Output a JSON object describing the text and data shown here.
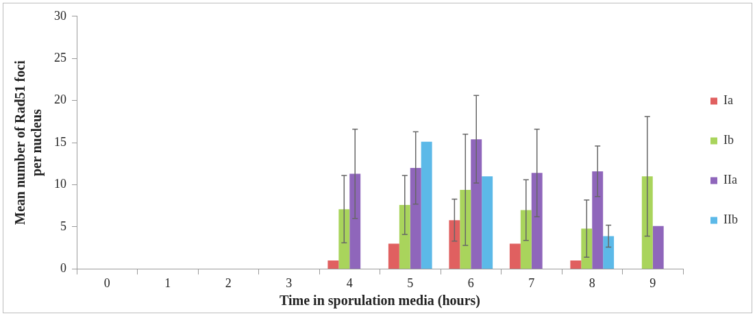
{
  "chart_data": {
    "type": "bar",
    "xlabel": "Time in sporulation media (hours)",
    "ylabel": "Mean number of Rad51 foci per nucleus",
    "categories": [
      "0",
      "1",
      "2",
      "3",
      "4",
      "5",
      "6",
      "7",
      "8",
      "9"
    ],
    "series": [
      {
        "name": "Ia",
        "color": "#e06060",
        "values": [
          0,
          0,
          0,
          0,
          1,
          3,
          5.8,
          3,
          1,
          0
        ],
        "errors": [
          null,
          null,
          null,
          null,
          null,
          null,
          2.5,
          null,
          null,
          null
        ]
      },
      {
        "name": "Ib",
        "color": "#a9d45c",
        "values": [
          0,
          0,
          0,
          0,
          7.1,
          7.6,
          9.4,
          7,
          4.8,
          11
        ],
        "errors": [
          null,
          null,
          null,
          null,
          4,
          3.5,
          6.6,
          3.6,
          3.4,
          7.1
        ]
      },
      {
        "name": "IIa",
        "color": "#8f66bb",
        "values": [
          0,
          0,
          0,
          0,
          11.3,
          12,
          15.4,
          11.4,
          11.6,
          5.1
        ],
        "errors": [
          null,
          null,
          null,
          null,
          5.3,
          4.3,
          5.2,
          5.2,
          3,
          null
        ]
      },
      {
        "name": "IIb",
        "color": "#5cb9e8",
        "values": [
          0,
          0,
          0,
          0,
          0,
          15.1,
          11,
          0,
          3.9,
          0
        ],
        "errors": [
          null,
          null,
          null,
          null,
          null,
          null,
          null,
          null,
          1.3,
          null
        ]
      }
    ],
    "ylim": [
      0,
      30
    ],
    "yticks": [
      0,
      5,
      10,
      15,
      20,
      25,
      30
    ],
    "grid": false,
    "legend": "right"
  }
}
